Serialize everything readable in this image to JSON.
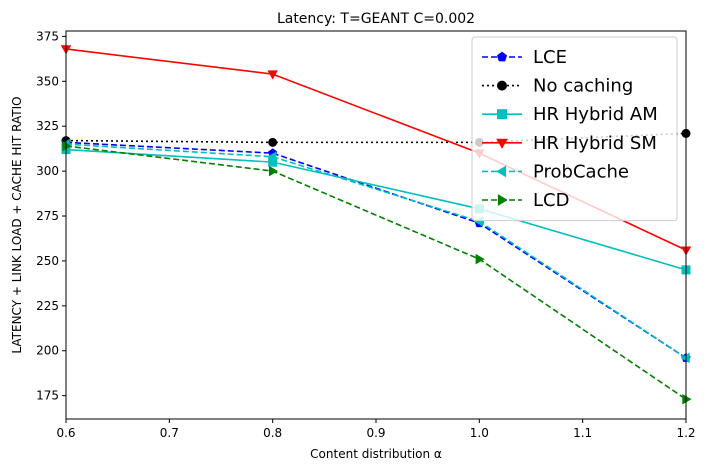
{
  "chart_data": {
    "type": "line",
    "title": "Latency: T=GEANT C=0.002",
    "xlabel": "Content distribution α",
    "ylabel": "LATENCY + LINK LOAD + CACHE HIT RATIO",
    "xlim": [
      0.6,
      1.2
    ],
    "ylim": [
      162,
      378
    ],
    "x_ticks": [
      0.6,
      0.7,
      0.8,
      0.9,
      1.0,
      1.1,
      1.2
    ],
    "x_tick_labels": [
      "0.6",
      "0.7",
      "0.8",
      "0.9",
      "1.0",
      "1.1",
      "1.2"
    ],
    "y_ticks": [
      175,
      200,
      225,
      250,
      275,
      300,
      325,
      350,
      375
    ],
    "y_tick_labels": [
      "175",
      "200",
      "225",
      "250",
      "275",
      "300",
      "325",
      "350",
      "375"
    ],
    "grid": false,
    "legend_position": "top-right",
    "x": [
      0.6,
      0.8,
      1.0,
      1.2
    ],
    "series": [
      {
        "name": "LCE",
        "values": [
          316,
          310,
          271,
          196
        ],
        "color": "#0000ff",
        "line_style": "dashed",
        "marker": "pentagon"
      },
      {
        "name": "No caching",
        "values": [
          317,
          316,
          316,
          321
        ],
        "color": "#000000",
        "line_style": "dotted",
        "marker": "circle"
      },
      {
        "name": "HR Hybrid AM",
        "values": [
          312,
          305,
          279,
          245
        ],
        "color": "#00bfbf",
        "line_style": "solid",
        "marker": "square"
      },
      {
        "name": "HR Hybrid SM",
        "values": [
          368,
          354,
          310,
          256
        ],
        "color": "#ff0000",
        "line_style": "solid",
        "marker": "triangle-down"
      },
      {
        "name": "ProbCache",
        "values": [
          315,
          308,
          272,
          196
        ],
        "color": "#00bfbf",
        "line_style": "dashed",
        "marker": "triangle-left"
      },
      {
        "name": "LCD",
        "values": [
          314,
          300,
          251,
          173
        ],
        "color": "#008000",
        "line_style": "dashed",
        "marker": "triangle-right"
      }
    ]
  }
}
